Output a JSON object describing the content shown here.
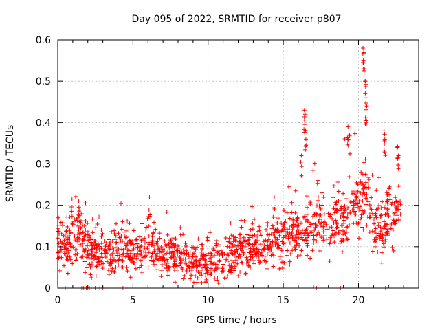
{
  "chart_data": {
    "type": "scatter",
    "title": "Day 095 of 2022, SRMTID for receiver p807",
    "xlabel": "GPS time / hours",
    "ylabel": "SRMTID / TECUs",
    "xlim": [
      0,
      24
    ],
    "ylim": [
      0,
      0.6
    ],
    "x_ticks": [
      0,
      5,
      10,
      15,
      20
    ],
    "x_tick_labels": [
      "0",
      "5",
      "10",
      "15",
      "20"
    ],
    "y_ticks": [
      0,
      0.1,
      0.2,
      0.3,
      0.4,
      0.5,
      0.6
    ],
    "y_tick_labels": [
      "0",
      "0.1",
      "0.2",
      "0.3",
      "0.4",
      "0.5",
      "0.6"
    ],
    "grid": true,
    "marker": "+",
    "color": "#ff0000",
    "series": [
      {
        "name": "SRMTID",
        "baseline": [
          [
            0.0,
            0.09
          ],
          [
            0.5,
            0.1
          ],
          [
            1.0,
            0.12
          ],
          [
            1.5,
            0.13
          ],
          [
            2.0,
            0.1
          ],
          [
            2.5,
            0.09
          ],
          [
            3.0,
            0.08
          ],
          [
            3.5,
            0.08
          ],
          [
            4.0,
            0.09
          ],
          [
            4.5,
            0.1
          ],
          [
            5.0,
            0.09
          ],
          [
            5.5,
            0.08
          ],
          [
            6.0,
            0.1
          ],
          [
            6.5,
            0.09
          ],
          [
            7.0,
            0.08
          ],
          [
            7.5,
            0.08
          ],
          [
            8.0,
            0.07
          ],
          [
            8.5,
            0.07
          ],
          [
            9.0,
            0.06
          ],
          [
            9.5,
            0.06
          ],
          [
            10.0,
            0.06
          ],
          [
            10.5,
            0.06
          ],
          [
            11.0,
            0.06
          ],
          [
            11.5,
            0.07
          ],
          [
            12.0,
            0.09
          ],
          [
            12.5,
            0.09
          ],
          [
            13.0,
            0.1
          ],
          [
            13.5,
            0.1
          ],
          [
            14.0,
            0.11
          ],
          [
            14.5,
            0.12
          ],
          [
            15.0,
            0.12
          ],
          [
            15.5,
            0.13
          ],
          [
            16.0,
            0.13
          ],
          [
            16.5,
            0.15
          ],
          [
            17.0,
            0.15
          ],
          [
            17.5,
            0.16
          ],
          [
            18.0,
            0.14
          ],
          [
            18.5,
            0.15
          ],
          [
            19.0,
            0.17
          ],
          [
            19.5,
            0.19
          ],
          [
            20.0,
            0.19
          ],
          [
            20.5,
            0.22
          ],
          [
            21.0,
            0.16
          ],
          [
            21.5,
            0.14
          ],
          [
            22.0,
            0.17
          ],
          [
            22.5,
            0.18
          ],
          [
            22.8,
            0.19
          ]
        ],
        "spread": 0.035,
        "spikes": [
          {
            "x": 0.05,
            "y": 0.17
          },
          {
            "x": 0.95,
            "y": 0.215
          },
          {
            "x": 1.4,
            "y": 0.21
          },
          {
            "x": 6.1,
            "y": 0.22
          },
          {
            "x": 14.4,
            "y": 0.22
          },
          {
            "x": 16.2,
            "y": 0.32
          },
          {
            "x": 16.4,
            "y": 0.43
          },
          {
            "x": 16.45,
            "y": 0.42
          },
          {
            "x": 16.5,
            "y": 0.36
          },
          {
            "x": 17.3,
            "y": 0.26
          },
          {
            "x": 19.3,
            "y": 0.39
          },
          {
            "x": 19.4,
            "y": 0.37
          },
          {
            "x": 20.3,
            "y": 0.58
          },
          {
            "x": 20.35,
            "y": 0.57
          },
          {
            "x": 20.4,
            "y": 0.53
          },
          {
            "x": 20.45,
            "y": 0.5
          },
          {
            "x": 20.5,
            "y": 0.46
          },
          {
            "x": 20.55,
            "y": 0.44
          },
          {
            "x": 21.7,
            "y": 0.38
          },
          {
            "x": 21.75,
            "y": 0.36
          },
          {
            "x": 22.6,
            "y": 0.34
          },
          {
            "x": 22.65,
            "y": 0.32
          }
        ],
        "zero_points": [
          0.5,
          1.6,
          1.7,
          1.8,
          1.9,
          2.0,
          2.1,
          2.5,
          2.8,
          3.0,
          4.3,
          4.4,
          17.2,
          18.8,
          21.8
        ]
      }
    ]
  }
}
